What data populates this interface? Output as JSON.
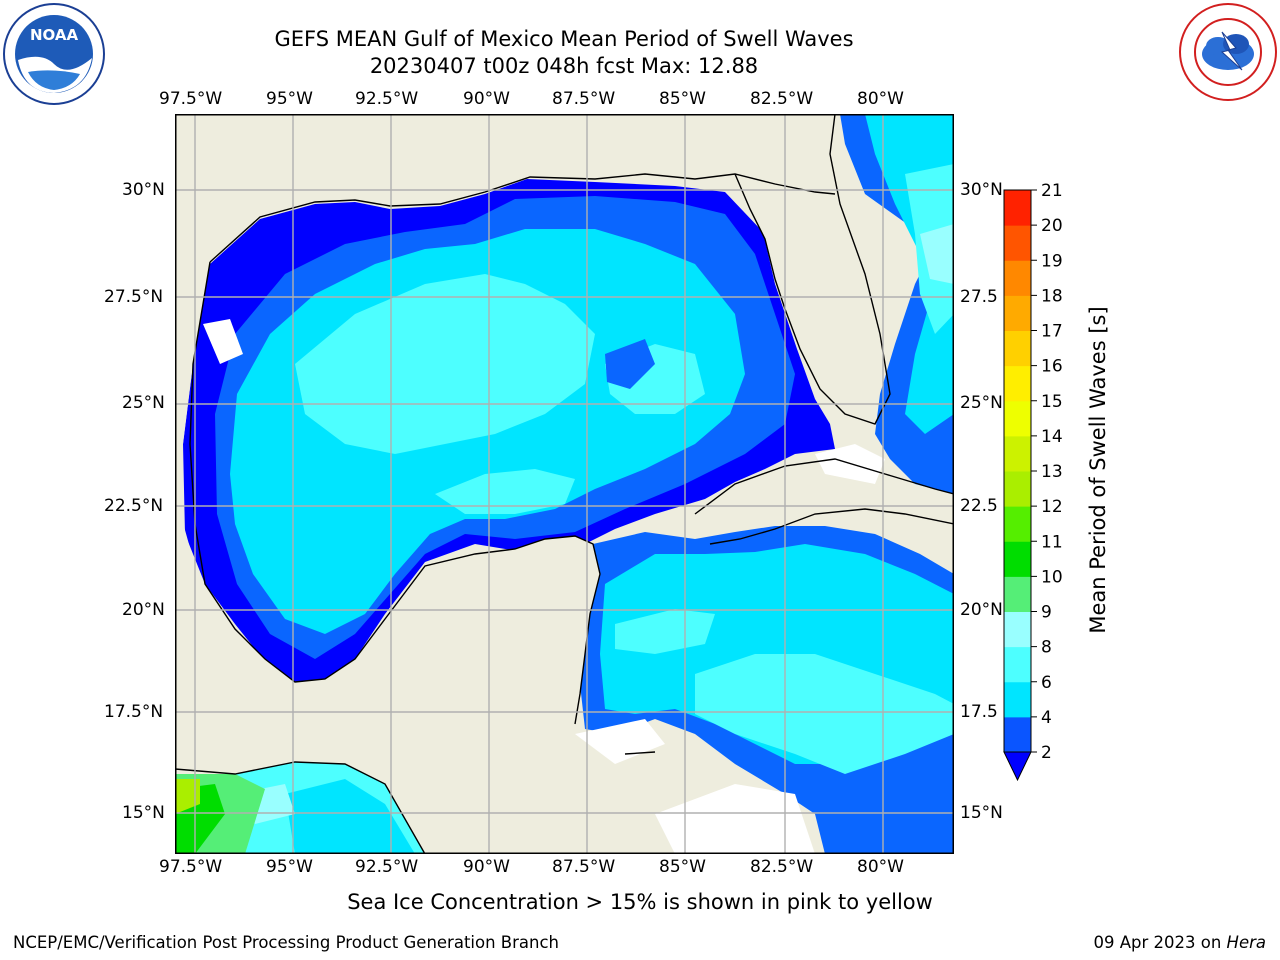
{
  "header": {
    "title_line1": "GEFS MEAN Gulf of Mexico Mean Period of Swell Waves",
    "title_line2": "20230407 t00z 048h fcst   Max: 12.88"
  },
  "logos": {
    "noaa": {
      "text": "NOAA",
      "icon": "noaa-seagull-logo"
    },
    "nws": {
      "icon": "nws-lightning-cloud-logo"
    }
  },
  "map": {
    "lon_labels": [
      "97.5°W",
      "95°W",
      "92.5°W",
      "90°W",
      "87.5°W",
      "85°W",
      "82.5°W",
      "80°W"
    ],
    "lat_labels_left": [
      "30°N",
      "27.5°N",
      "25°N",
      "22.5°N",
      "20°N",
      "17.5°N",
      "15°N"
    ],
    "lat_labels_right": [
      "30°N",
      "27.5",
      "25°N",
      "22.5",
      "20°N",
      "17.5",
      "15°N"
    ],
    "colors": {
      "land": "#eeedde",
      "coast": "#000000",
      "grid": "#b0b0b0"
    }
  },
  "colorbar": {
    "title": "Mean Period of Swell Waves [s]",
    "ticks": [
      "2",
      "4",
      "6",
      "8",
      "9",
      "10",
      "11",
      "12",
      "13",
      "14",
      "15",
      "16",
      "17",
      "18",
      "19",
      "20",
      "21"
    ],
    "bands": [
      "#0a55ff",
      "#00e5ff",
      "#4dffff",
      "#99ffff",
      "#55ee77",
      "#00dd00",
      "#55ee00",
      "#aaee00",
      "#ccf200",
      "#eeff00",
      "#ffee00",
      "#ffd000",
      "#ffaa00",
      "#ff8800",
      "#ff5500",
      "#ff2200",
      "#ff0000"
    ],
    "under_color": "#0000ff"
  },
  "caption": "Sea Ice Concentration > 15% is shown in pink to yellow",
  "footer": {
    "left": "NCEP/EMC/Verification Post Processing Product Generation Branch",
    "right_prefix": "09 Apr 2023 on ",
    "right_host": "Hera"
  }
}
